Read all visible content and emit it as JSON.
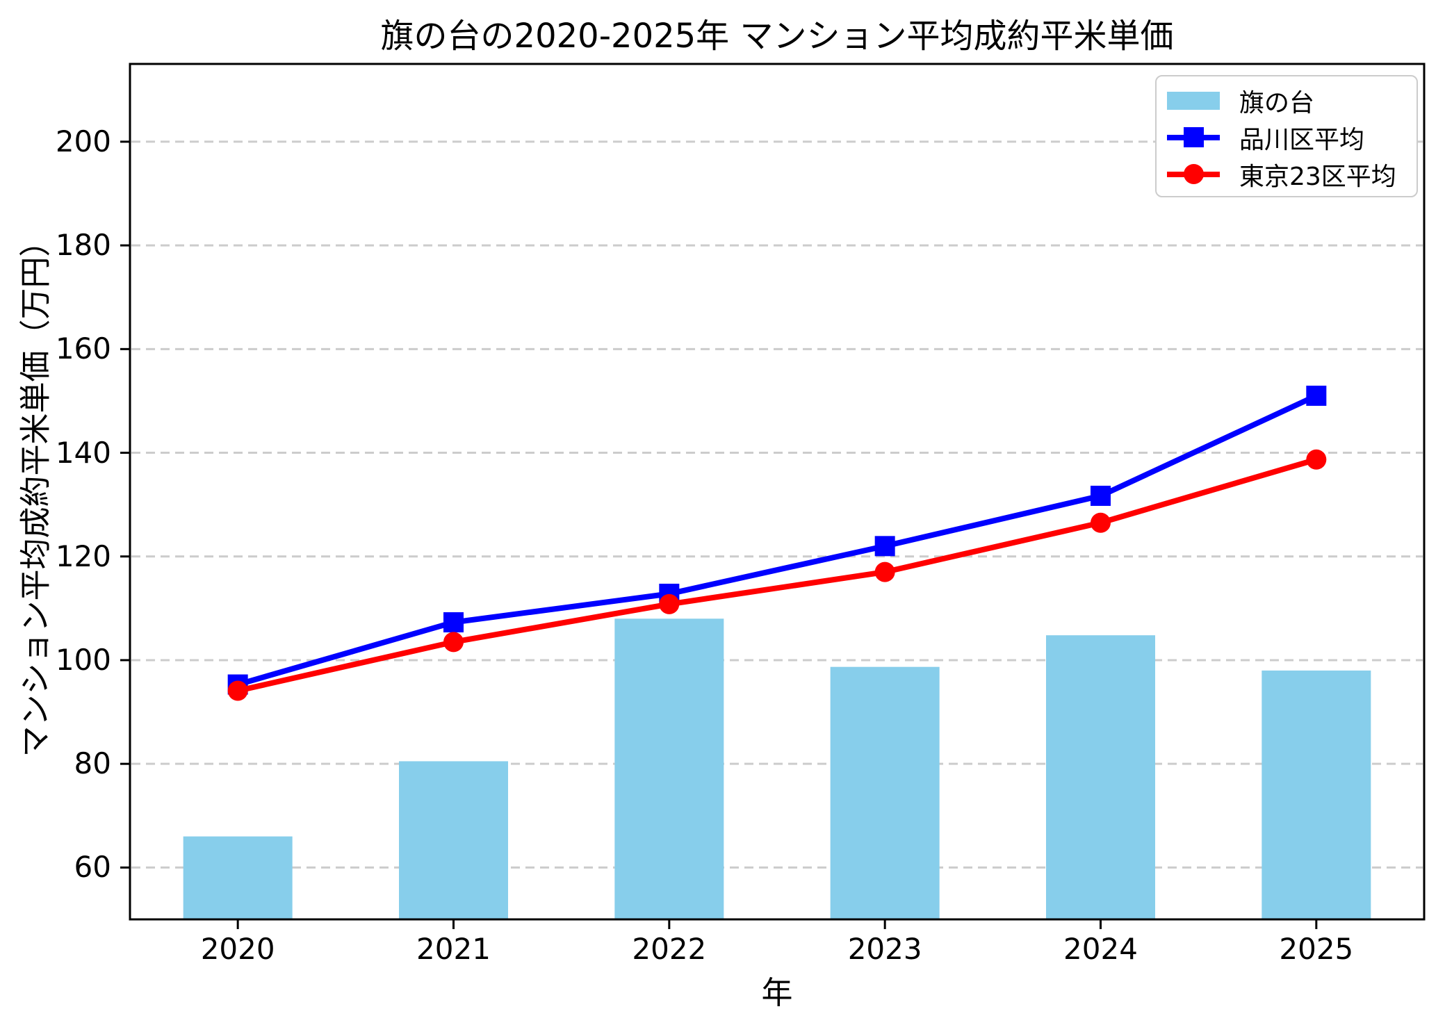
{
  "chart_data": {
    "type": "combo",
    "title": "旗の台の2020-2025年 マンション平均成約平米単価",
    "xlabel": "年",
    "ylabel": "マンション平均成約平米単価（万円）",
    "categories": [
      "2020",
      "2021",
      "2022",
      "2023",
      "2024",
      "2025"
    ],
    "series": [
      {
        "name": "旗の台",
        "type": "bar",
        "marker": "none",
        "color": "#87CEEB",
        "values": [
          66,
          80.5,
          108,
          98.7,
          104.8,
          98
        ]
      },
      {
        "name": "品川区平均",
        "type": "line",
        "marker": "square",
        "color": "#0000FF",
        "values": [
          95.3,
          107.3,
          112.8,
          122,
          131.7,
          151
        ]
      },
      {
        "name": "東京23区平均",
        "type": "line",
        "marker": "circle",
        "color": "#FF0000",
        "values": [
          94.1,
          103.5,
          110.8,
          117,
          126.5,
          138.7
        ]
      }
    ],
    "ylim": [
      50,
      215
    ],
    "yticks": [
      60,
      80,
      100,
      120,
      140,
      160,
      180,
      200
    ],
    "grid": "horizontal-dashed",
    "grid_color": "#cccccc",
    "axis_color": "#000000",
    "background": "#ffffff",
    "legend_position": "upper right"
  }
}
